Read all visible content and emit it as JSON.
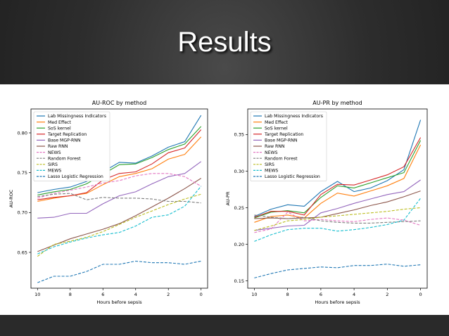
{
  "slide": {
    "title": "Results"
  },
  "chart_data": [
    {
      "type": "line",
      "title": "AU-ROC by method",
      "xlabel": "Hours before sepsis",
      "ylabel": "AU-ROC",
      "x": [
        10,
        9,
        8,
        7,
        6,
        5,
        4,
        3,
        2,
        1,
        0
      ],
      "x_ticks": [
        10,
        8,
        6,
        4,
        2,
        0
      ],
      "y_ticks": [
        0.65,
        0.7,
        0.75,
        0.8
      ],
      "xlim": [
        10.4,
        -0.4
      ],
      "ylim": [
        0.605,
        0.83
      ],
      "legend": "top-left",
      "series": [
        {
          "name": "Lab Missingness Indicators",
          "color": "#1f77b4",
          "dash": false,
          "values": [
            0.725,
            0.729,
            0.732,
            0.739,
            0.751,
            0.763,
            0.762,
            0.771,
            0.782,
            0.789,
            0.822
          ]
        },
        {
          "name": "Med Effect",
          "color": "#ff7f0e",
          "dash": false,
          "values": [
            0.714,
            0.718,
            0.721,
            0.724,
            0.735,
            0.745,
            0.749,
            0.755,
            0.767,
            0.773,
            0.795
          ]
        },
        {
          "name": "SoS kernel",
          "color": "#2ca02c",
          "dash": false,
          "values": [
            0.722,
            0.726,
            0.729,
            0.736,
            0.748,
            0.76,
            0.761,
            0.769,
            0.779,
            0.786,
            0.808
          ]
        },
        {
          "name": "Target Replication",
          "color": "#d62728",
          "dash": false,
          "values": [
            0.716,
            0.719,
            0.721,
            0.725,
            0.741,
            0.749,
            0.751,
            0.761,
            0.775,
            0.781,
            0.804
          ]
        },
        {
          "name": "Base MGP-RNN",
          "color": "#9467bd",
          "dash": false,
          "values": [
            0.693,
            0.694,
            0.699,
            0.699,
            0.711,
            0.721,
            0.726,
            0.736,
            0.745,
            0.749,
            0.764
          ]
        },
        {
          "name": "Raw RNN",
          "color": "#8c564b",
          "dash": false,
          "values": [
            0.651,
            0.659,
            0.667,
            0.673,
            0.679,
            0.686,
            0.696,
            0.707,
            0.718,
            0.73,
            0.743
          ]
        },
        {
          "name": "NEWS",
          "color": "#e377c2",
          "dash": true,
          "values": [
            0.718,
            0.724,
            0.728,
            0.732,
            0.737,
            0.74,
            0.746,
            0.749,
            0.749,
            0.745,
            0.733
          ]
        },
        {
          "name": "Random Forest",
          "color": "#7f7f7f",
          "dash": true,
          "values": [
            0.72,
            0.723,
            0.724,
            0.716,
            0.719,
            0.718,
            0.718,
            0.717,
            0.714,
            0.714,
            0.712
          ]
        },
        {
          "name": "SIRS",
          "color": "#bcbd22",
          "dash": true,
          "values": [
            0.645,
            0.66,
            0.664,
            0.669,
            0.676,
            0.685,
            0.694,
            0.702,
            0.71,
            0.717,
            0.723
          ]
        },
        {
          "name": "MEWS",
          "color": "#17becf",
          "dash": true,
          "values": [
            0.648,
            0.657,
            0.663,
            0.668,
            0.672,
            0.675,
            0.683,
            0.694,
            0.697,
            0.708,
            0.733
          ]
        },
        {
          "name": "Lasso Logistic Regression",
          "color": "#1f77b4",
          "dash": true,
          "values": [
            0.612,
            0.62,
            0.62,
            0.626,
            0.635,
            0.635,
            0.639,
            0.637,
            0.637,
            0.635,
            0.639
          ]
        }
      ]
    },
    {
      "type": "line",
      "title": "AU-PR by method",
      "xlabel": "Hours before sepsis",
      "ylabel": "AU-PR",
      "x": [
        10,
        9,
        8,
        7,
        6,
        5,
        4,
        3,
        2,
        1,
        0
      ],
      "x_ticks": [
        10,
        8,
        6,
        4,
        2,
        0
      ],
      "y_ticks": [
        0.15,
        0.2,
        0.25,
        0.3,
        0.35
      ],
      "xlim": [
        10.4,
        -0.4
      ],
      "ylim": [
        0.14,
        0.385
      ],
      "legend": "top-left",
      "series": [
        {
          "name": "Lab Missingness Indicators",
          "color": "#1f77b4",
          "dash": false,
          "values": [
            0.238,
            0.248,
            0.254,
            0.252,
            0.272,
            0.286,
            0.272,
            0.277,
            0.287,
            0.302,
            0.37
          ]
        },
        {
          "name": "Med Effect",
          "color": "#ff7f0e",
          "dash": false,
          "values": [
            0.23,
            0.238,
            0.24,
            0.236,
            0.256,
            0.27,
            0.266,
            0.273,
            0.28,
            0.29,
            0.336
          ]
        },
        {
          "name": "SoS kernel",
          "color": "#2ca02c",
          "dash": false,
          "values": [
            0.236,
            0.244,
            0.246,
            0.243,
            0.264,
            0.28,
            0.277,
            0.284,
            0.291,
            0.298,
            0.342
          ]
        },
        {
          "name": "Target Replication",
          "color": "#d62728",
          "dash": false,
          "values": [
            0.237,
            0.245,
            0.245,
            0.24,
            0.268,
            0.282,
            0.281,
            0.288,
            0.295,
            0.306,
            0.346
          ]
        },
        {
          "name": "Base MGP-RNN",
          "color": "#9467bd",
          "dash": false,
          "values": [
            0.219,
            0.222,
            0.225,
            0.226,
            0.243,
            0.249,
            0.256,
            0.262,
            0.268,
            0.272,
            0.288
          ]
        },
        {
          "name": "Raw RNN",
          "color": "#8c564b",
          "dash": false,
          "values": [
            0.235,
            0.236,
            0.235,
            0.236,
            0.237,
            0.242,
            0.247,
            0.253,
            0.258,
            0.265,
            0.273
          ]
        },
        {
          "name": "NEWS",
          "color": "#e377c2",
          "dash": true,
          "values": [
            0.216,
            0.221,
            0.244,
            0.232,
            0.234,
            0.232,
            0.231,
            0.234,
            0.236,
            0.233,
            0.226
          ]
        },
        {
          "name": "Random Forest",
          "color": "#7f7f7f",
          "dash": true,
          "values": [
            0.24,
            0.237,
            0.235,
            0.237,
            0.232,
            0.23,
            0.229,
            0.229,
            0.23,
            0.231,
            0.232
          ]
        },
        {
          "name": "SIRS",
          "color": "#bcbd22",
          "dash": true,
          "values": [
            0.219,
            0.225,
            0.232,
            0.234,
            0.237,
            0.239,
            0.241,
            0.243,
            0.245,
            0.248,
            0.25
          ]
        },
        {
          "name": "MEWS",
          "color": "#17becf",
          "dash": true,
          "values": [
            0.204,
            0.213,
            0.22,
            0.222,
            0.222,
            0.218,
            0.22,
            0.223,
            0.227,
            0.233,
            0.263
          ]
        },
        {
          "name": "Lasso Logistic Regression",
          "color": "#1f77b4",
          "dash": true,
          "values": [
            0.154,
            0.16,
            0.165,
            0.167,
            0.169,
            0.168,
            0.171,
            0.171,
            0.173,
            0.17,
            0.172
          ]
        }
      ]
    }
  ]
}
